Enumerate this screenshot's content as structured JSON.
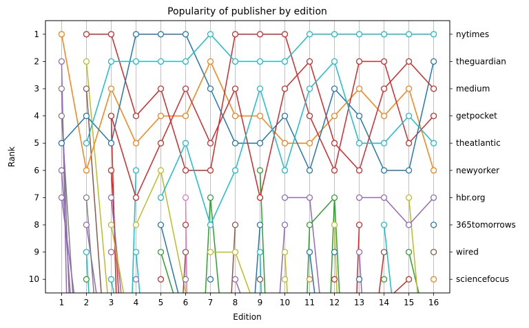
{
  "chart_data": {
    "type": "line",
    "title": "Popularity of publisher by edition",
    "xlabel": "Edition",
    "ylabel": "Rank",
    "x": [
      1,
      2,
      3,
      4,
      5,
      6,
      7,
      8,
      9,
      10,
      11,
      12,
      13,
      14,
      15,
      16
    ],
    "y_ticks": [
      1,
      2,
      3,
      4,
      5,
      6,
      7,
      8,
      9,
      10
    ],
    "y_inverted": true,
    "xlim": [
      0.35,
      16.65
    ],
    "ylim": [
      10.5,
      0.5
    ],
    "grid": "vertical",
    "right_axis_labels": [
      "nytimes",
      "theguardian",
      "medium",
      "getpocket",
      "theatlantic",
      "newyorker",
      "hbr.org",
      "365tomorrows",
      "wired",
      "sciencefocus"
    ],
    "series": [
      {
        "color": "#ff7f0e",
        "values": [
          1,
          6,
          3,
          5,
          4,
          4,
          2,
          4,
          4,
          5,
          5,
          4,
          3,
          4,
          3,
          6
        ]
      },
      {
        "color": "#d62728",
        "values": [
          null,
          1,
          1,
          4,
          3,
          6,
          6,
          1,
          1,
          1,
          4,
          6,
          2,
          2,
          5,
          4
        ]
      },
      {
        "color": "#1f77b4",
        "values": [
          5,
          4,
          5,
          1,
          1,
          1,
          3,
          5,
          5,
          4,
          6,
          3,
          4,
          6,
          6,
          2
        ]
      },
      {
        "color": "#17becf",
        "values": [
          null,
          5,
          2,
          2,
          2,
          2,
          1,
          2,
          2,
          2,
          1,
          1,
          1,
          1,
          1,
          1
        ]
      },
      {
        "color": "#d62728",
        "values": [
          null,
          null,
          4,
          7,
          5,
          3,
          5,
          3,
          7,
          3,
          2,
          5,
          6,
          3,
          2,
          3
        ]
      },
      {
        "color": "#17becf",
        "values": [
          null,
          null,
          null,
          null,
          7,
          5,
          8,
          6,
          3,
          6,
          3,
          2,
          5,
          5,
          4,
          5
        ]
      },
      {
        "color": "#9467bd",
        "values": [
          null,
          null,
          null,
          null,
          null,
          null,
          null,
          null,
          null,
          7,
          7,
          null,
          7,
          7,
          8,
          7
        ]
      },
      {
        "color": "#bcbd22",
        "values": [
          null,
          null,
          null,
          8,
          6,
          null,
          9,
          9,
          null,
          null,
          null,
          null,
          null,
          null,
          7,
          null
        ]
      },
      {
        "color": "#2ca02c",
        "values": [
          null,
          null,
          null,
          null,
          null,
          null,
          7,
          null,
          6,
          null,
          8,
          7,
          null,
          null,
          9,
          null
        ]
      },
      {
        "color": "#8c564b",
        "values": [
          null,
          null,
          null,
          null,
          null,
          null,
          null,
          8,
          null,
          null,
          null,
          null,
          null,
          9,
          null,
          9
        ]
      }
    ],
    "extra_markers": [
      {
        "x": 1,
        "y": 2,
        "color": "#9467bd"
      },
      {
        "x": 1,
        "y": 3,
        "color": "#7f7f7f"
      },
      {
        "x": 1,
        "y": 4,
        "color": "#7f7f7f"
      },
      {
        "x": 1,
        "y": 6,
        "color": "#9467bd"
      },
      {
        "x": 1,
        "y": 7,
        "color": "#9467bd"
      },
      {
        "x": 2,
        "y": 2,
        "color": "#bcbd22"
      },
      {
        "x": 2,
        "y": 3,
        "color": "#8c564b"
      },
      {
        "x": 2,
        "y": 7,
        "color": "#7f7f7f"
      },
      {
        "x": 2,
        "y": 8,
        "color": "#9467bd"
      },
      {
        "x": 2,
        "y": 9,
        "color": "#17becf"
      },
      {
        "x": 2,
        "y": 10,
        "color": "#2ca02c"
      },
      {
        "x": 3,
        "y": 6,
        "color": "#d62728"
      },
      {
        "x": 3,
        "y": 7,
        "color": "#9467bd"
      },
      {
        "x": 3,
        "y": 8,
        "color": "#bcbd22"
      },
      {
        "x": 3,
        "y": 9,
        "color": "#9467bd"
      },
      {
        "x": 3,
        "y": 10,
        "color": "#17becf"
      },
      {
        "x": 4,
        "y": 6,
        "color": "#17becf"
      },
      {
        "x": 4,
        "y": 9,
        "color": "#17becf"
      },
      {
        "x": 4,
        "y": 10,
        "color": "#9467bd"
      },
      {
        "x": 5,
        "y": 8,
        "color": "#1f77b4"
      },
      {
        "x": 5,
        "y": 9,
        "color": "#2ca02c"
      },
      {
        "x": 5,
        "y": 10,
        "color": "#d62728"
      },
      {
        "x": 6,
        "y": 7,
        "color": "#e377c2"
      },
      {
        "x": 6,
        "y": 8,
        "color": "#d62728"
      },
      {
        "x": 6,
        "y": 9,
        "color": "#8c564b"
      },
      {
        "x": 6,
        "y": 10,
        "color": "#7f7f7f"
      },
      {
        "x": 7,
        "y": 10,
        "color": "#1f77b4"
      },
      {
        "x": 8,
        "y": 10,
        "color": "#9467bd"
      },
      {
        "x": 9,
        "y": 8,
        "color": "#1f77b4"
      },
      {
        "x": 9,
        "y": 9,
        "color": "#17becf"
      },
      {
        "x": 9,
        "y": 10,
        "color": "#8c564b"
      },
      {
        "x": 10,
        "y": 8,
        "color": "#9467bd"
      },
      {
        "x": 10,
        "y": 9,
        "color": "#bcbd22"
      },
      {
        "x": 10,
        "y": 10,
        "color": "#bcbd22"
      },
      {
        "x": 11,
        "y": 9,
        "color": "#1f77b4"
      },
      {
        "x": 11,
        "y": 10,
        "color": "#ff7f0e"
      },
      {
        "x": 12,
        "y": 8,
        "color": "#bcbd22"
      },
      {
        "x": 12,
        "y": 9,
        "color": "#1f77b4"
      },
      {
        "x": 12,
        "y": 10,
        "color": "#d62728"
      },
      {
        "x": 13,
        "y": 8,
        "color": "#d62728"
      },
      {
        "x": 13,
        "y": 9,
        "color": "#9467bd"
      },
      {
        "x": 13,
        "y": 10,
        "color": "#1f77b4"
      },
      {
        "x": 14,
        "y": 8,
        "color": "#17becf"
      },
      {
        "x": 14,
        "y": 10,
        "color": "#2ca02c"
      },
      {
        "x": 15,
        "y": 10,
        "color": "#d62728"
      },
      {
        "x": 16,
        "y": 8,
        "color": "#1f77b4"
      },
      {
        "x": 16,
        "y": 10,
        "color": "#ff7f0e"
      }
    ],
    "edge_lines": [
      {
        "color": "#7f7f7f",
        "from": [
          1,
          3
        ],
        "to": [
          1.3,
          10.5
        ]
      },
      {
        "color": "#7f7f7f",
        "from": [
          1,
          4
        ],
        "to": [
          1.45,
          10.5
        ]
      },
      {
        "color": "#9467bd",
        "from": [
          1,
          2
        ],
        "to": [
          1.2,
          10.5
        ]
      },
      {
        "color": "#9467bd",
        "from": [
          1,
          7
        ],
        "to": [
          1.5,
          10.5
        ]
      },
      {
        "color": "#9467bd",
        "from": [
          1,
          6
        ],
        "to": [
          1.35,
          10.5
        ]
      },
      {
        "color": "#bcbd22",
        "from": [
          2,
          2
        ],
        "to": [
          2.85,
          10.5
        ]
      },
      {
        "color": "#8c564b",
        "from": [
          2,
          3
        ],
        "to": [
          2.6,
          10.5
        ]
      },
      {
        "color": "#9467bd",
        "from": [
          2,
          8
        ],
        "to": [
          2.4,
          10.5
        ]
      },
      {
        "color": "#7f7f7f",
        "from": [
          2,
          7
        ],
        "to": [
          2.3,
          10.5
        ]
      },
      {
        "color": "#17becf",
        "from": [
          2,
          9
        ],
        "to": [
          2.1,
          10.5
        ]
      },
      {
        "color": "#d62728",
        "from": [
          3,
          6
        ],
        "to": [
          3.3,
          10.5
        ]
      },
      {
        "color": "#d62728",
        "from": [
          3,
          4
        ],
        "to": [
          3.2,
          10.5
        ]
      },
      {
        "color": "#9467bd",
        "from": [
          3,
          7
        ],
        "to": [
          3.4,
          10.5
        ]
      },
      {
        "color": "#bcbd22",
        "from": [
          3,
          8
        ],
        "to": [
          3.5,
          10.5
        ]
      },
      {
        "color": "#17becf",
        "from": [
          3,
          10
        ],
        "to": [
          3.1,
          10.5
        ]
      },
      {
        "color": "#17becf",
        "from": [
          4,
          6
        ],
        "to": [
          3.85,
          10.5
        ]
      },
      {
        "color": "#17becf",
        "from": [
          4,
          9
        ],
        "to": [
          4.15,
          10.5
        ]
      },
      {
        "color": "#1f77b4",
        "from": [
          5,
          8
        ],
        "to": [
          5.7,
          10.5
        ]
      },
      {
        "color": "#2ca02c",
        "from": [
          5,
          9
        ],
        "to": [
          5.5,
          10.5
        ]
      },
      {
        "color": "#bcbd22",
        "from": [
          5,
          6
        ],
        "to": [
          6.0,
          10.5
        ]
      },
      {
        "color": "#8c564b",
        "from": [
          6,
          9
        ],
        "to": [
          5.9,
          10.5
        ]
      },
      {
        "color": "#e377c2",
        "from": [
          6,
          7
        ],
        "to": [
          6.05,
          10.5
        ]
      },
      {
        "color": "#2ca02c",
        "from": [
          7,
          7
        ],
        "to": [
          6.8,
          10.5
        ]
      },
      {
        "color": "#2ca02c",
        "from": [
          7,
          7
        ],
        "to": [
          7.35,
          10.5
        ]
      },
      {
        "color": "#8c564b",
        "from": [
          8,
          8
        ],
        "to": [
          7.85,
          10.5
        ]
      },
      {
        "color": "#9467bd",
        "from": [
          8,
          10
        ],
        "to": [
          8.2,
          10.5
        ]
      },
      {
        "color": "#bcbd22",
        "from": [
          8,
          9
        ],
        "to": [
          8.6,
          10.5
        ]
      },
      {
        "color": "#2ca02c",
        "from": [
          9,
          6
        ],
        "to": [
          9.2,
          10.5
        ]
      },
      {
        "color": "#1f77b4",
        "from": [
          9,
          8
        ],
        "to": [
          8.8,
          10.5
        ]
      },
      {
        "color": "#17becf",
        "from": [
          9,
          9
        ],
        "to": [
          9.05,
          10.5
        ]
      },
      {
        "color": "#9467bd",
        "from": [
          10,
          8
        ],
        "to": [
          9.8,
          10.5
        ]
      },
      {
        "color": "#bcbd22",
        "from": [
          10,
          9
        ],
        "to": [
          10.1,
          10.5
        ]
      },
      {
        "color": "#2ca02c",
        "from": [
          11,
          8
        ],
        "to": [
          10.9,
          10.5
        ]
      },
      {
        "color": "#9467bd",
        "from": [
          11,
          7
        ],
        "to": [
          11.4,
          10.5
        ]
      },
      {
        "color": "#1f77b4",
        "from": [
          11,
          9
        ],
        "to": [
          11.2,
          10.5
        ]
      },
      {
        "color": "#2ca02c",
        "from": [
          12,
          7
        ],
        "to": [
          11.85,
          10.5
        ]
      },
      {
        "color": "#2ca02c",
        "from": [
          12,
          7
        ],
        "to": [
          12.2,
          10.5
        ]
      },
      {
        "color": "#bcbd22",
        "from": [
          12,
          8
        ],
        "to": [
          12.1,
          10.5
        ]
      },
      {
        "color": "#d62728",
        "from": [
          13,
          8
        ],
        "to": [
          12.9,
          10.5
        ]
      },
      {
        "color": "#9467bd",
        "from": [
          13,
          9
        ],
        "to": [
          13.1,
          10.5
        ]
      },
      {
        "color": "#17becf",
        "from": [
          14,
          8
        ],
        "to": [
          14.3,
          10.5
        ]
      },
      {
        "color": "#d62728",
        "from": [
          14,
          9
        ],
        "to": [
          13.8,
          10.5
        ]
      },
      {
        "color": "#2ca02c",
        "from": [
          15,
          9
        ],
        "to": [
          15.4,
          10.5
        ]
      },
      {
        "color": "#bcbd22",
        "from": [
          15,
          7
        ],
        "to": [
          15.35,
          10.5
        ]
      },
      {
        "color": "#d62728",
        "from": [
          15,
          10
        ],
        "to": [
          14.4,
          10.5
        ]
      }
    ]
  }
}
